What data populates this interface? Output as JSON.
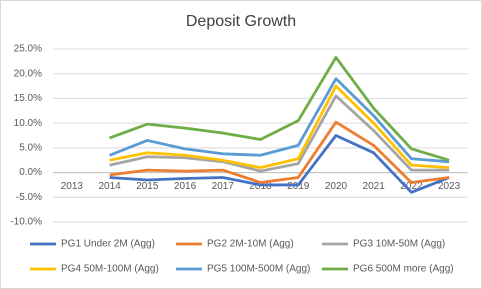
{
  "chart_data": {
    "type": "line",
    "title": "Deposit Growth",
    "categories": [
      "2013",
      "2014",
      "2015",
      "2016",
      "2017",
      "2018",
      "2019",
      "2020",
      "2021",
      "2022",
      "2023"
    ],
    "series": [
      {
        "name": "PG1 Under 2M (Agg)",
        "color": "#4472c4",
        "values": [
          null,
          -1.0,
          -1.5,
          -1.2,
          -1.0,
          -2.5,
          -2.5,
          7.5,
          4.0,
          -4.0,
          -1.0
        ]
      },
      {
        "name": "PG2 2M-10M (Agg)",
        "color": "#ed7d31",
        "values": [
          null,
          -0.5,
          0.5,
          0.3,
          0.5,
          -2.0,
          -1.0,
          10.2,
          5.5,
          -2.0,
          -1.0
        ]
      },
      {
        "name": "PG3 10M-50M (Agg)",
        "color": "#a5a5a5",
        "values": [
          null,
          1.5,
          3.2,
          3.0,
          2.2,
          0.3,
          1.8,
          15.5,
          8.5,
          0.5,
          0.5
        ]
      },
      {
        "name": "PG4 50M-100M (Agg)",
        "color": "#ffc000",
        "values": [
          null,
          2.5,
          4.0,
          3.5,
          2.5,
          1.0,
          2.8,
          17.5,
          10.0,
          1.5,
          1.0
        ]
      },
      {
        "name": "PG5 100M-500M (Agg)",
        "color": "#5b9bd5",
        "values": [
          null,
          3.5,
          6.5,
          4.8,
          3.8,
          3.5,
          5.5,
          19.0,
          11.5,
          2.8,
          2.2
        ]
      },
      {
        "name": "PG6 500M more (Agg)",
        "color": "#70ad47",
        "values": [
          null,
          7.0,
          9.8,
          9.0,
          8.0,
          6.7,
          10.5,
          23.3,
          13.0,
          4.8,
          2.5
        ]
      }
    ],
    "ylim": [
      -10,
      25
    ],
    "yticks": [
      {
        "value": -10,
        "label": "-10.0%"
      },
      {
        "value": -5,
        "label": "-5.0%"
      },
      {
        "value": 0,
        "label": "0.0%"
      },
      {
        "value": 5,
        "label": "5.0%"
      },
      {
        "value": 10,
        "label": "10.0%"
      },
      {
        "value": 15,
        "label": "15.0%"
      },
      {
        "value": 20,
        "label": "20.0%"
      },
      {
        "value": 25,
        "label": "25.0%"
      }
    ],
    "grid": true,
    "legend": "bottom"
  }
}
